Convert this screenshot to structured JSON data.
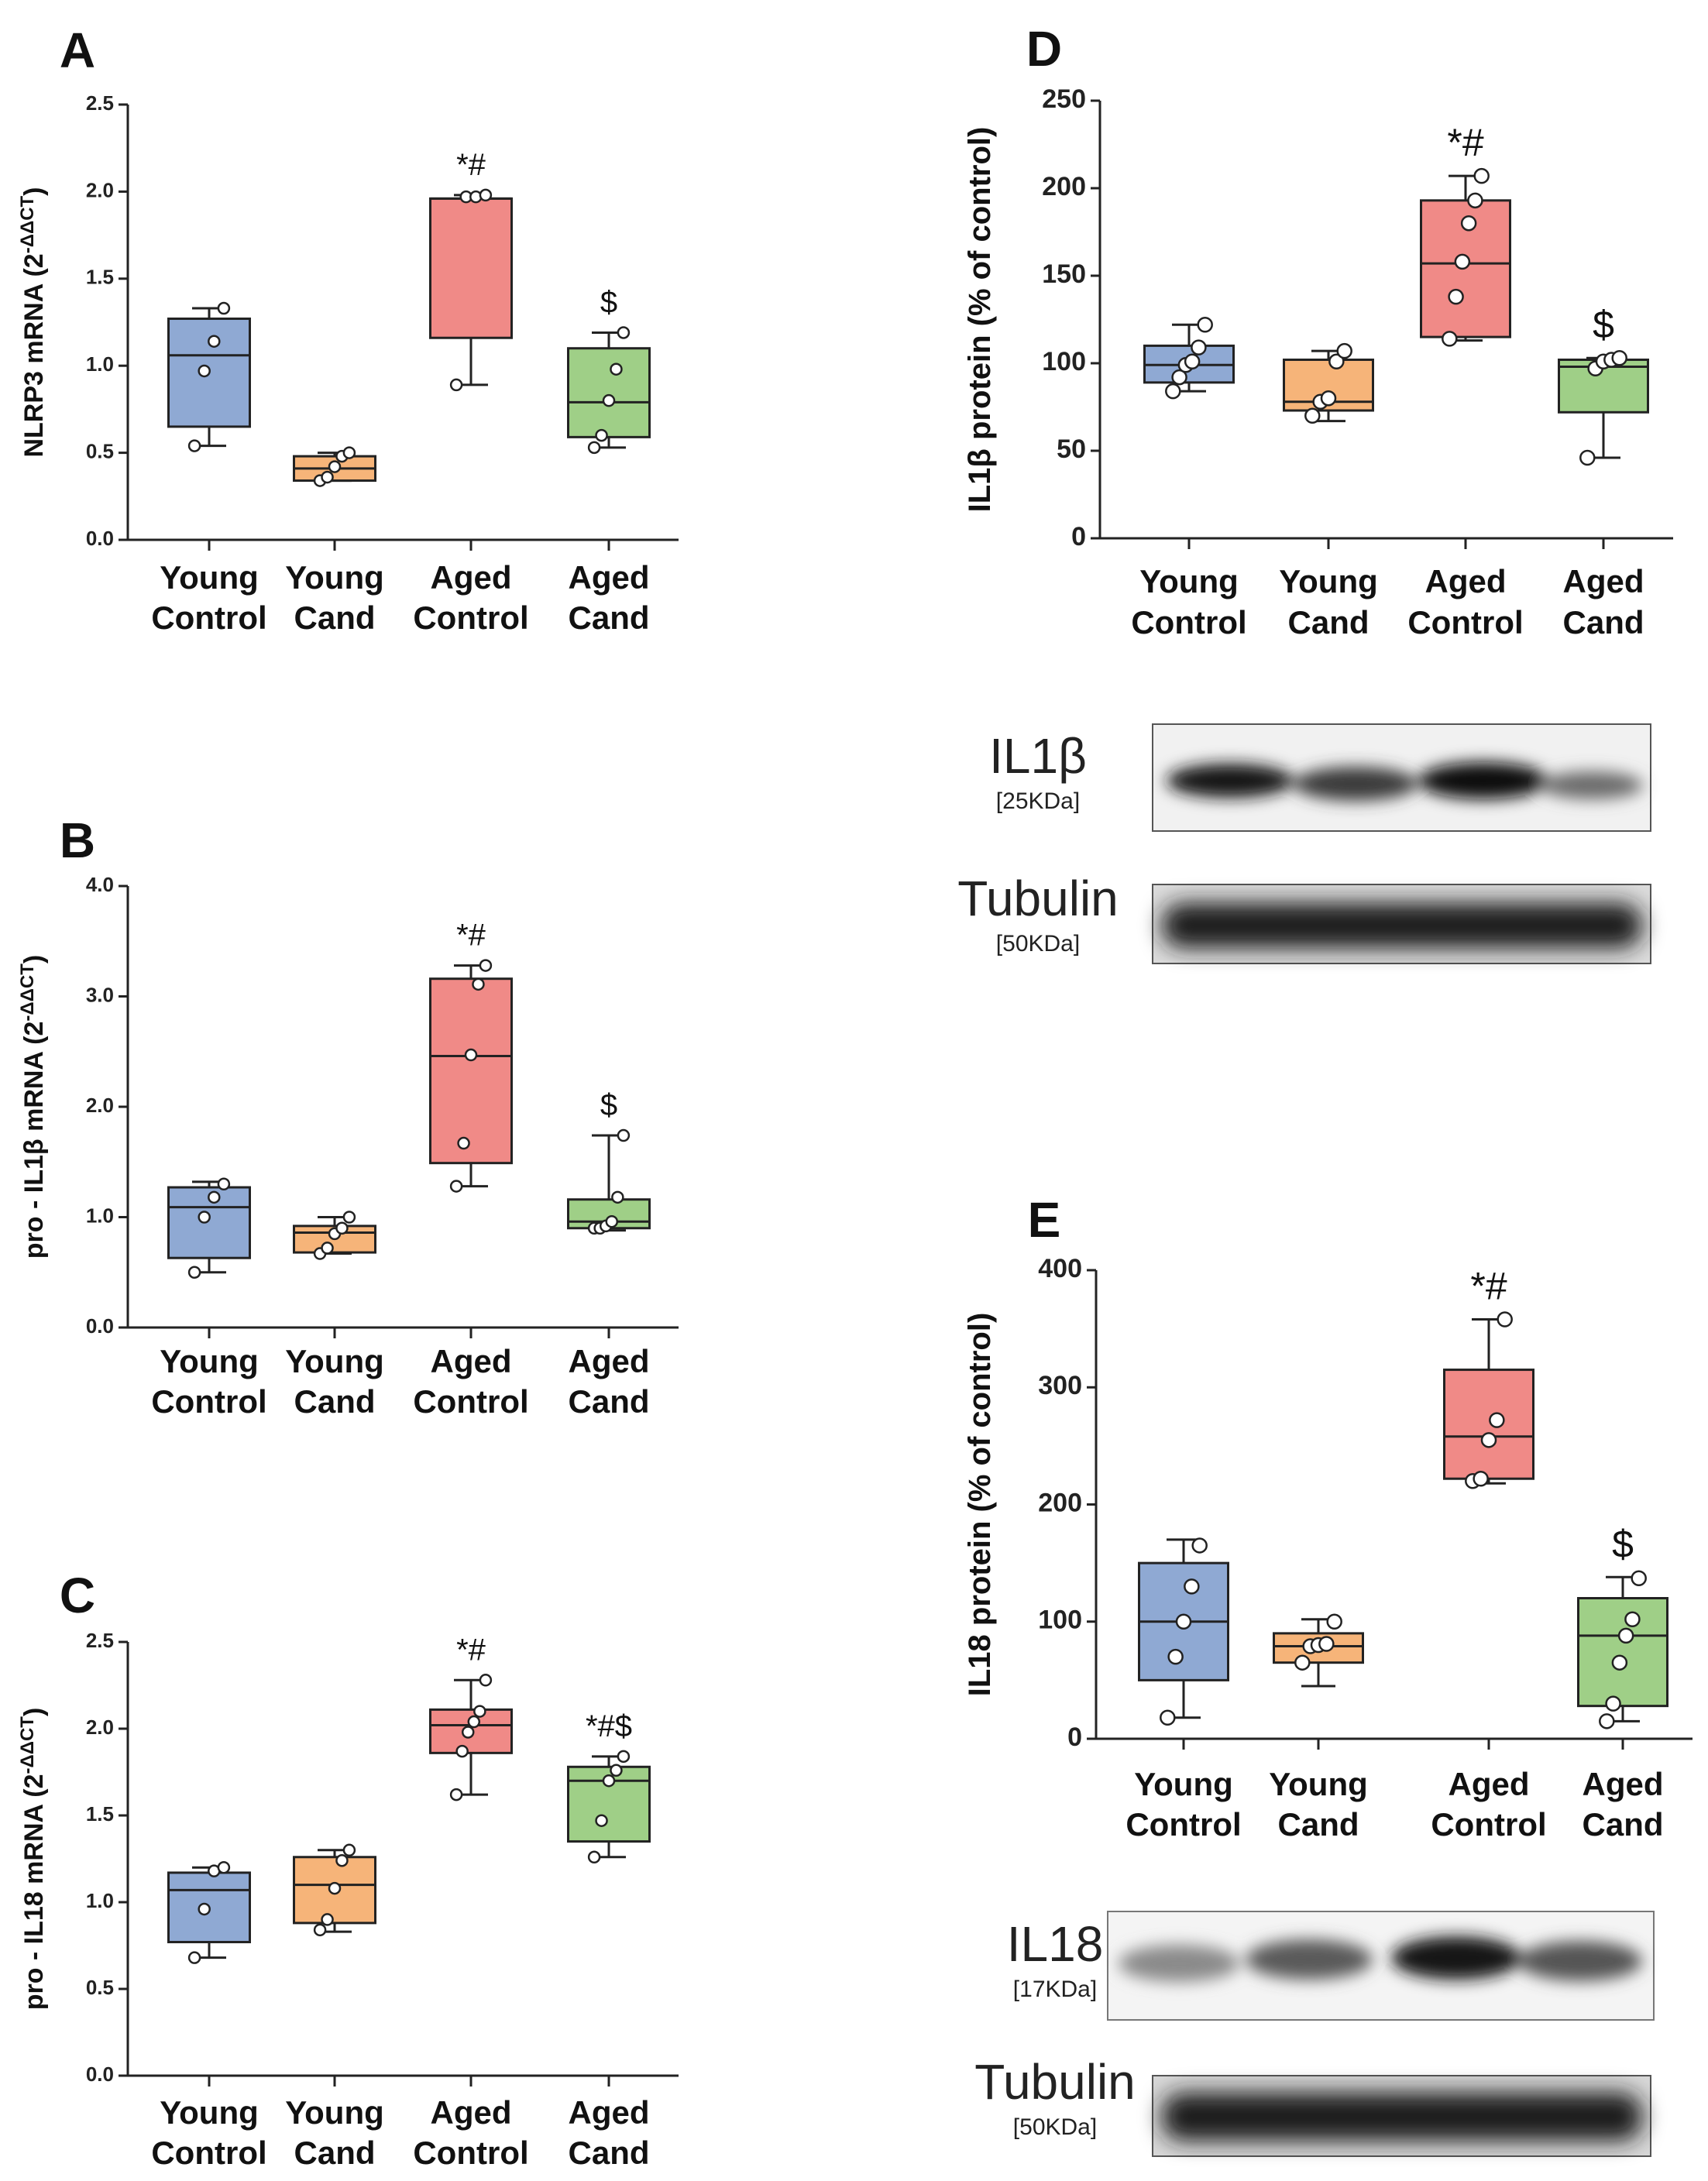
{
  "colors": {
    "young_control": "#8fa9d3",
    "young_cand": "#f6b479",
    "aged_control": "#f08a87",
    "aged_cand": "#9fcf87"
  },
  "chart_data": [
    {
      "id": "A",
      "letter": "A",
      "type": "box",
      "ylabel": "NLRP3 mRNA (2",
      "ylabel_sup": "-ΔΔCT",
      "ylabel_close": ")",
      "ylim": [
        0,
        2.5
      ],
      "yticks": [
        "0.0",
        "0.5",
        "1.0",
        "1.5",
        "2.0",
        "2.5"
      ],
      "categories": [
        [
          "Young",
          "Control"
        ],
        [
          "Young",
          "Cand"
        ],
        [
          "Aged",
          "Control"
        ],
        [
          "Aged",
          "Cand"
        ]
      ],
      "boxes": [
        {
          "min": 0.54,
          "q1": 0.65,
          "median": 1.06,
          "q3": 1.27,
          "max": 1.33,
          "points": [
            0.54,
            0.97,
            1.14,
            1.33
          ],
          "sig": ""
        },
        {
          "min": 0.34,
          "q1": 0.34,
          "median": 0.41,
          "q3": 0.48,
          "max": 0.5,
          "points": [
            0.34,
            0.36,
            0.42,
            0.48,
            0.5
          ],
          "sig": ""
        },
        {
          "min": 0.89,
          "q1": 1.16,
          "median": 1.96,
          "q3": 1.96,
          "max": 1.98,
          "points": [
            0.89,
            1.97,
            1.97,
            1.98
          ],
          "sig": "*#"
        },
        {
          "min": 0.53,
          "q1": 0.59,
          "median": 0.79,
          "q3": 1.1,
          "max": 1.19,
          "points": [
            0.53,
            0.6,
            0.8,
            0.98,
            1.19
          ],
          "sig": "$"
        }
      ]
    },
    {
      "id": "B",
      "letter": "B",
      "type": "box",
      "ylabel": "pro - IL1β mRNA (2",
      "ylabel_sup": "-ΔΔCT",
      "ylabel_close": ")",
      "ylim": [
        0,
        4.0
      ],
      "yticks": [
        "0.0",
        "1.0",
        "2.0",
        "3.0",
        "4.0"
      ],
      "categories": [
        [
          "Young",
          "Control"
        ],
        [
          "Young",
          "Cand"
        ],
        [
          "Aged",
          "Control"
        ],
        [
          "Aged",
          "Cand"
        ]
      ],
      "boxes": [
        {
          "min": 0.5,
          "q1": 0.63,
          "median": 1.09,
          "q3": 1.27,
          "max": 1.32,
          "points": [
            0.5,
            1.0,
            1.18,
            1.3
          ],
          "sig": ""
        },
        {
          "min": 0.67,
          "q1": 0.68,
          "median": 0.86,
          "q3": 0.92,
          "max": 1.0,
          "points": [
            0.67,
            0.72,
            0.85,
            0.9,
            1.0
          ],
          "sig": ""
        },
        {
          "min": 1.28,
          "q1": 1.49,
          "median": 2.46,
          "q3": 3.16,
          "max": 3.28,
          "points": [
            1.28,
            1.67,
            2.47,
            3.11,
            3.28
          ],
          "sig": "*#"
        },
        {
          "min": 0.88,
          "q1": 0.9,
          "median": 0.96,
          "q3": 1.16,
          "max": 1.74,
          "points": [
            0.9,
            0.9,
            0.92,
            0.96,
            1.18,
            1.74
          ],
          "sig": "$"
        }
      ]
    },
    {
      "id": "C",
      "letter": "C",
      "type": "box",
      "ylabel": "pro - IL18 mRNA (2",
      "ylabel_sup": "-ΔΔCT",
      "ylabel_close": ")",
      "ylim": [
        0,
        2.5
      ],
      "yticks": [
        "0.0",
        "0.5",
        "1.0",
        "1.5",
        "2.0",
        "2.5"
      ],
      "categories": [
        [
          "Young",
          "Control"
        ],
        [
          "Young",
          "Cand"
        ],
        [
          "Aged",
          "Control"
        ],
        [
          "Aged",
          "Cand"
        ]
      ],
      "boxes": [
        {
          "min": 0.68,
          "q1": 0.77,
          "median": 1.07,
          "q3": 1.17,
          "max": 1.2,
          "points": [
            0.68,
            0.96,
            1.18,
            1.2
          ],
          "sig": ""
        },
        {
          "min": 0.83,
          "q1": 0.88,
          "median": 1.1,
          "q3": 1.26,
          "max": 1.3,
          "points": [
            0.84,
            0.9,
            1.08,
            1.24,
            1.3
          ],
          "sig": ""
        },
        {
          "min": 1.62,
          "q1": 1.86,
          "median": 2.02,
          "q3": 2.11,
          "max": 2.28,
          "points": [
            1.62,
            1.87,
            1.98,
            2.04,
            2.1,
            2.28
          ],
          "sig": "*#"
        },
        {
          "min": 1.26,
          "q1": 1.35,
          "median": 1.7,
          "q3": 1.78,
          "max": 1.84,
          "points": [
            1.26,
            1.47,
            1.7,
            1.76,
            1.84
          ],
          "sig": "*#$"
        }
      ]
    },
    {
      "id": "D",
      "letter": "D",
      "type": "box",
      "ylabel": "IL1β protein (% of control)",
      "ylabel_sup": "",
      "ylabel_close": "",
      "ylim": [
        0,
        250
      ],
      "yticks": [
        "0",
        "50",
        "100",
        "150",
        "200",
        "250"
      ],
      "categories": [
        [
          "Young",
          "Control"
        ],
        [
          "Young",
          "Cand"
        ],
        [
          "Aged",
          "Control"
        ],
        [
          "Aged",
          "Cand"
        ]
      ],
      "boxes": [
        {
          "min": 84,
          "q1": 89,
          "median": 99,
          "q3": 110,
          "max": 122,
          "points": [
            84,
            92,
            99,
            101,
            109,
            122
          ],
          "sig": ""
        },
        {
          "min": 67,
          "q1": 73,
          "median": 78,
          "q3": 102,
          "max": 107,
          "points": [
            70,
            78,
            80,
            101,
            107
          ],
          "sig": ""
        },
        {
          "min": 113,
          "q1": 115,
          "median": 157,
          "q3": 193,
          "max": 207,
          "points": [
            114,
            138,
            158,
            180,
            193,
            207
          ],
          "sig": "*#"
        },
        {
          "min": 46,
          "q1": 72,
          "median": 98,
          "q3": 102,
          "max": 103,
          "points": [
            46,
            97,
            101,
            102,
            103
          ],
          "sig": "$"
        }
      ]
    },
    {
      "id": "E",
      "letter": "E",
      "type": "box",
      "ylabel": "IL18 protein (% of control)",
      "ylabel_sup": "",
      "ylabel_close": "",
      "ylim": [
        0,
        400
      ],
      "yticks": [
        "0",
        "100",
        "200",
        "300",
        "400"
      ],
      "categories": [
        [
          "Young",
          "Control"
        ],
        [
          "Young",
          "Cand"
        ],
        [
          "Aged",
          "Control"
        ],
        [
          "Aged",
          "Cand"
        ]
      ],
      "boxes": [
        {
          "min": 18,
          "q1": 50,
          "median": 100,
          "q3": 150,
          "max": 170,
          "points": [
            18,
            70,
            100,
            130,
            165
          ],
          "sig": ""
        },
        {
          "min": 45,
          "q1": 65,
          "median": 79,
          "q3": 90,
          "max": 102,
          "points": [
            65,
            79,
            80,
            81,
            100
          ],
          "sig": ""
        },
        {
          "min": 218,
          "q1": 222,
          "median": 258,
          "q3": 315,
          "max": 358,
          "points": [
            220,
            222,
            255,
            272,
            358
          ],
          "sig": "*#"
        },
        {
          "min": 15,
          "q1": 28,
          "median": 88,
          "q3": 120,
          "max": 138,
          "points": [
            15,
            30,
            65,
            88,
            102,
            137
          ],
          "sig": "$"
        }
      ]
    }
  ],
  "blots": [
    {
      "name": "IL1β",
      "kda": "[25KDa]"
    },
    {
      "name": "Tubulin",
      "kda": "[50KDa]"
    },
    {
      "name": "IL18",
      "kda": "[17KDa]"
    },
    {
      "name": "Tubulin",
      "kda": "[50KDa]"
    }
  ]
}
